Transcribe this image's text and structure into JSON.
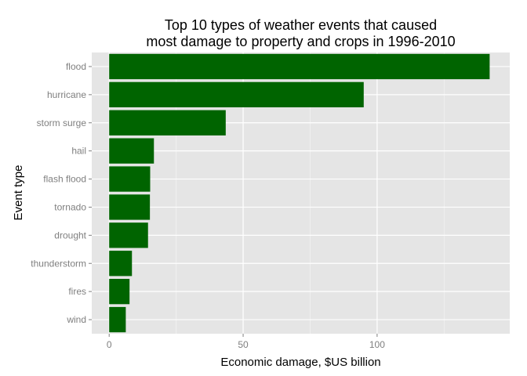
{
  "chart_data": {
    "type": "bar",
    "orientation": "horizontal",
    "title_lines": [
      "Top 10 types of weather events that caused",
      "most damage to property and crops in 1996-2010"
    ],
    "xlabel": "Economic damage, $US billion",
    "ylabel": "Event type",
    "categories": [
      "flood",
      "hurricane",
      "storm surge",
      "hail",
      "flash flood",
      "tornado",
      "drought",
      "thunderstorm",
      "fires",
      "wind"
    ],
    "values": [
      142,
      95,
      43.5,
      16.7,
      15.3,
      15.2,
      14.5,
      8.5,
      7.6,
      6.2
    ],
    "xlim": [
      -6.5,
      149.5
    ],
    "x_ticks": [
      0,
      50,
      100
    ],
    "x_minor_ticks": [
      25,
      75,
      125
    ],
    "grid": true,
    "colors": {
      "bar": "#006400",
      "panel": "#e5e5e5",
      "grid_major": "#ffffff",
      "grid_minor": "#f2f2f2",
      "tick_text": "#7f7f7f",
      "tick_mark": "#7f7f7f"
    }
  }
}
